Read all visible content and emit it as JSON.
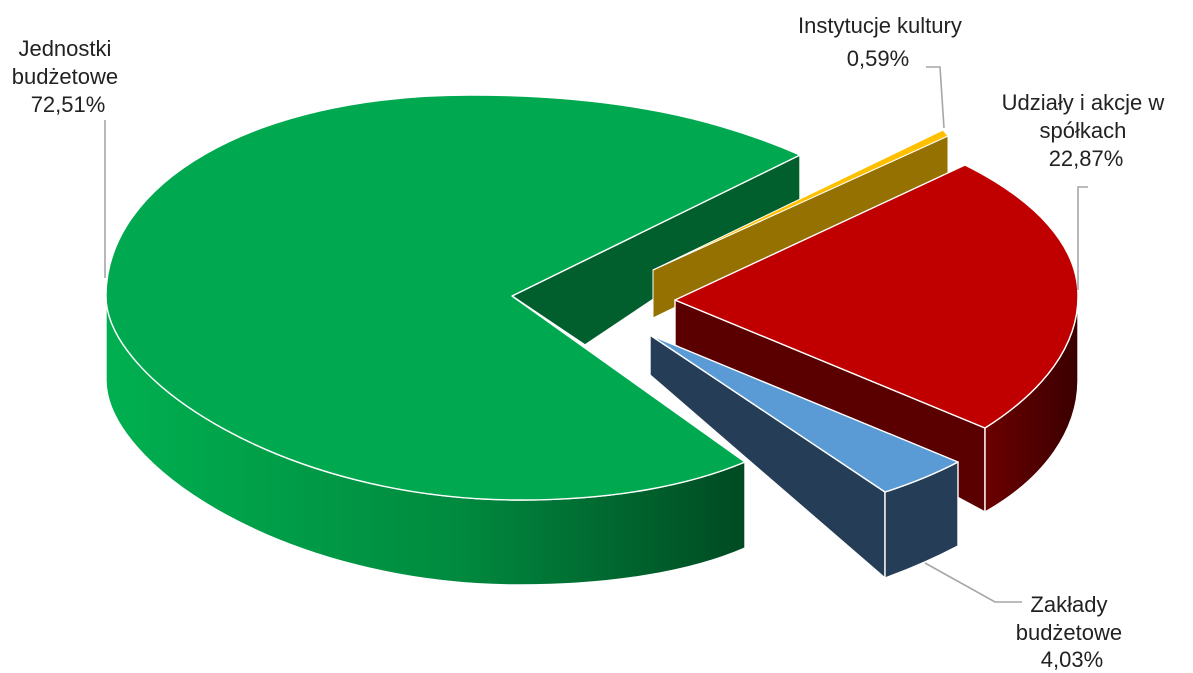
{
  "chart_data": {
    "type": "pie",
    "style": "3d-exploded",
    "title": "",
    "legend": "none",
    "labels_position": "outside-with-leader-lines",
    "slices": [
      {
        "key": "jednostki",
        "label_lines": [
          "Jednostki",
          "budżetowe"
        ],
        "value": 72.51,
        "value_label": "72,51%",
        "color": "#00a94f",
        "side_color_light": "#008c40",
        "side_color_dark": "#004d24"
      },
      {
        "key": "instytucje",
        "label_lines": [
          "Instytucje kultury"
        ],
        "value": 0.59,
        "value_label": "0,59%",
        "color": "#ffc000",
        "side_color_light": "#8f6b00",
        "side_color_dark": "#7a5c00"
      },
      {
        "key": "udzialy",
        "label_lines": [
          "Udziały  i akcje w",
          "spółkach"
        ],
        "value": 22.87,
        "value_label": "22,87%",
        "color": "#c00000",
        "side_color_light": "#5e0000",
        "side_color_dark": "#4a0000"
      },
      {
        "key": "zaklady",
        "label_lines": [
          "Zakłady",
          "budżetowe"
        ],
        "value": 4.03,
        "value_label": "4,03%",
        "color": "#5b9bd5",
        "side_color_light": "#264059",
        "side_color_dark": "#1f364c"
      }
    ]
  }
}
